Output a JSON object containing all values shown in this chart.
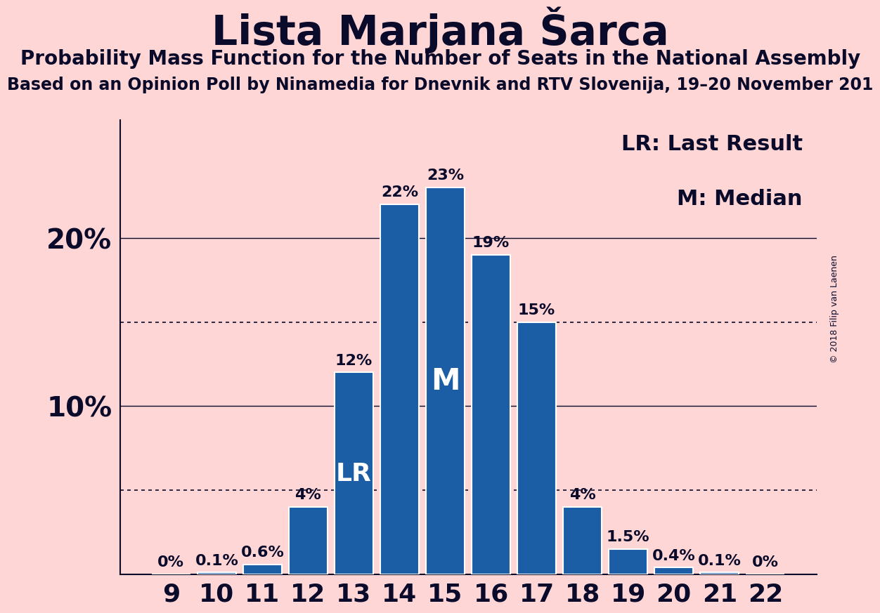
{
  "title": "Lista Marjana Šarca",
  "subtitle1": "Probability Mass Function for the Number of Seats in the National Assembly",
  "subtitle2": "Based on an Opinion Poll by Ninamedia for Dnevnik and RTV Slovenija, 19–20 November 201",
  "copyright": "© 2018 Filip van Laenen",
  "categories": [
    9,
    10,
    11,
    12,
    13,
    14,
    15,
    16,
    17,
    18,
    19,
    20,
    21,
    22
  ],
  "values": [
    0.0,
    0.1,
    0.6,
    4.0,
    12.0,
    22.0,
    23.0,
    19.0,
    15.0,
    4.0,
    1.5,
    0.4,
    0.1,
    0.0
  ],
  "labels": [
    "0%",
    "0.1%",
    "0.6%",
    "4%",
    "12%",
    "22%",
    "23%",
    "19%",
    "15%",
    "4%",
    "1.5%",
    "0.4%",
    "0.1%",
    "0%"
  ],
  "bar_color": "#1B5EA6",
  "background_color": "#FFD6D6",
  "text_color": "#0A0A2A",
  "bar_edge_color": "#FFFFFF",
  "lr_bar_index": 4,
  "median_bar_index": 6,
  "lr_label": "LR",
  "median_label": "M",
  "lr_legend": "LR: Last Result",
  "median_legend": "M: Median",
  "yticks": [
    10,
    20
  ],
  "dotted_lines": [
    5,
    15
  ],
  "ylim": [
    0,
    27
  ],
  "bar_label_fontsize": 16,
  "inside_label_fontsize_lr": 26,
  "inside_label_fontsize_m": 30,
  "title_fontsize": 42,
  "subtitle_fontsize": 20,
  "subtitle2_fontsize": 17,
  "yticklabel_fontsize": 28,
  "xticklabel_fontsize": 26,
  "legend_fontsize": 22
}
